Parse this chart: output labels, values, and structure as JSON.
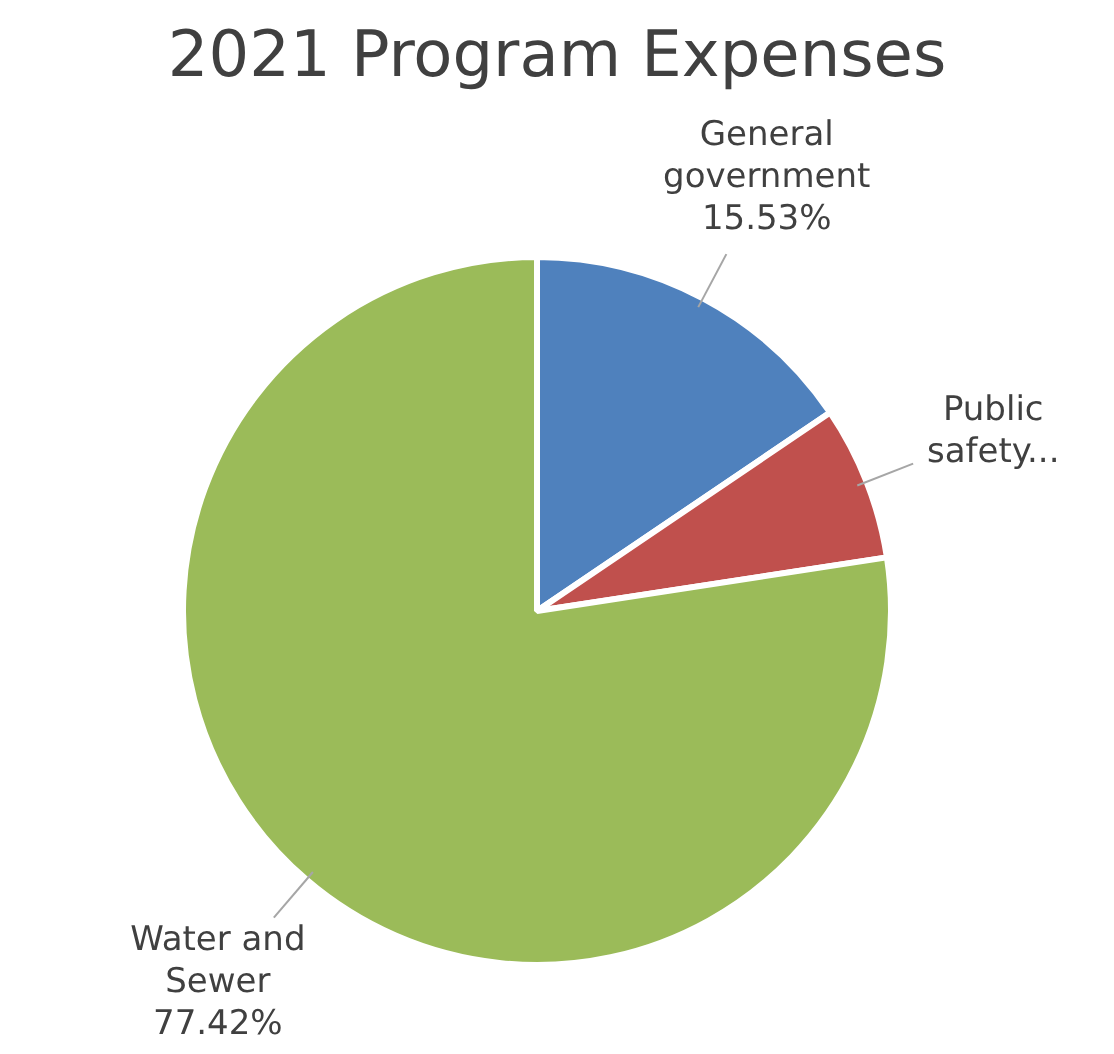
{
  "chart_data": {
    "type": "pie",
    "title": "2021 Program Expenses",
    "categories": [
      "General government",
      "Public safety...",
      "Water and Sewer"
    ],
    "values": [
      15.53,
      7.05,
      77.42
    ],
    "value_labels": [
      "15.53%",
      null,
      "77.42%"
    ],
    "colors": [
      "#4f81bd",
      "#c0504d",
      "#9bbb59"
    ],
    "legend": false
  }
}
